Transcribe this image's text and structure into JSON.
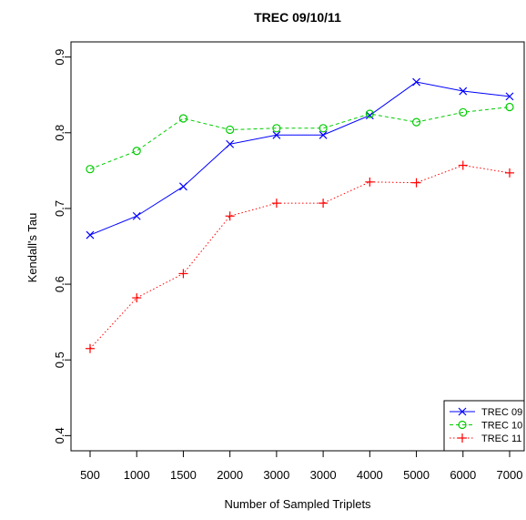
{
  "chart_data": {
    "type": "line",
    "title": "TREC 09/10/11",
    "xlabel": "Number of Sampled Triplets",
    "ylabel": "Kendall's Tau",
    "categories": [
      "500",
      "1000",
      "1500",
      "2000",
      "3000",
      "3000",
      "4000",
      "5000",
      "6000",
      "7000"
    ],
    "ylim": [
      0.38,
      0.92
    ],
    "yticks": [
      "0.4",
      "0.5",
      "0.6",
      "0.7",
      "0.8",
      "0.9"
    ],
    "grid": false,
    "legend_position": "bottom-right",
    "series": [
      {
        "name": "TREC 09",
        "color": "#0000ff",
        "marker": "x",
        "line_style": "solid",
        "values": [
          0.665,
          0.69,
          0.729,
          0.785,
          0.797,
          0.797,
          0.823,
          0.867,
          0.855,
          0.848
        ]
      },
      {
        "name": "TREC 10",
        "color": "#00cc00",
        "marker": "circle",
        "line_style": "dashed",
        "values": [
          0.752,
          0.776,
          0.819,
          0.804,
          0.806,
          0.806,
          0.825,
          0.814,
          0.827,
          0.834
        ]
      },
      {
        "name": "TREC 11",
        "color": "#ff0000",
        "marker": "plus",
        "line_style": "dotted",
        "values": [
          0.515,
          0.582,
          0.614,
          0.69,
          0.707,
          0.707,
          0.735,
          0.734,
          0.757,
          0.747
        ]
      }
    ]
  }
}
